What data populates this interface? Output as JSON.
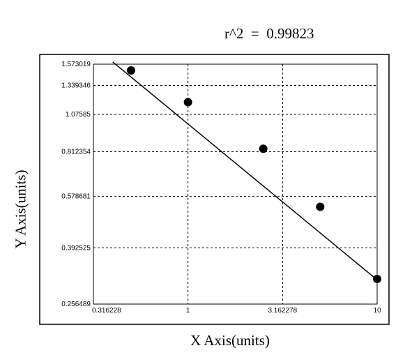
{
  "chart_data": {
    "type": "scatter",
    "title": "r^2  =  0.99823",
    "xlabel": "X Axis(units)",
    "ylabel": "Y Axis(units)",
    "x_scale": "log",
    "y_scale": "log",
    "xlim": [
      0.316228,
      10
    ],
    "ylim": [
      0.256489,
      1.573019
    ],
    "x_ticks": [
      0.316228,
      1,
      3.162278,
      10
    ],
    "x_tick_labels": [
      "0.316228",
      "1",
      "3.162278",
      "10"
    ],
    "y_ticks": [
      0.256489,
      0.392525,
      0.578681,
      0.812354,
      1.07585,
      1.339346,
      1.573019
    ],
    "y_tick_labels": [
      "0.256489",
      "0.392525",
      "0.578681",
      "0.812354",
      "1.07585",
      "1.339346",
      "1.573019"
    ],
    "grid": true,
    "series": [
      {
        "x": [
          0.5,
          1,
          2.5,
          5,
          10
        ],
        "y": [
          1.5,
          1.18,
          0.83,
          0.535,
          0.31
        ]
      }
    ],
    "fit_line": {
      "x": [
        0.4,
        10
      ],
      "y": [
        1.6,
        0.308
      ]
    },
    "colors": {
      "marker": "#000000",
      "line": "#000000",
      "grid": "#000000",
      "background": "#ffffff"
    }
  }
}
